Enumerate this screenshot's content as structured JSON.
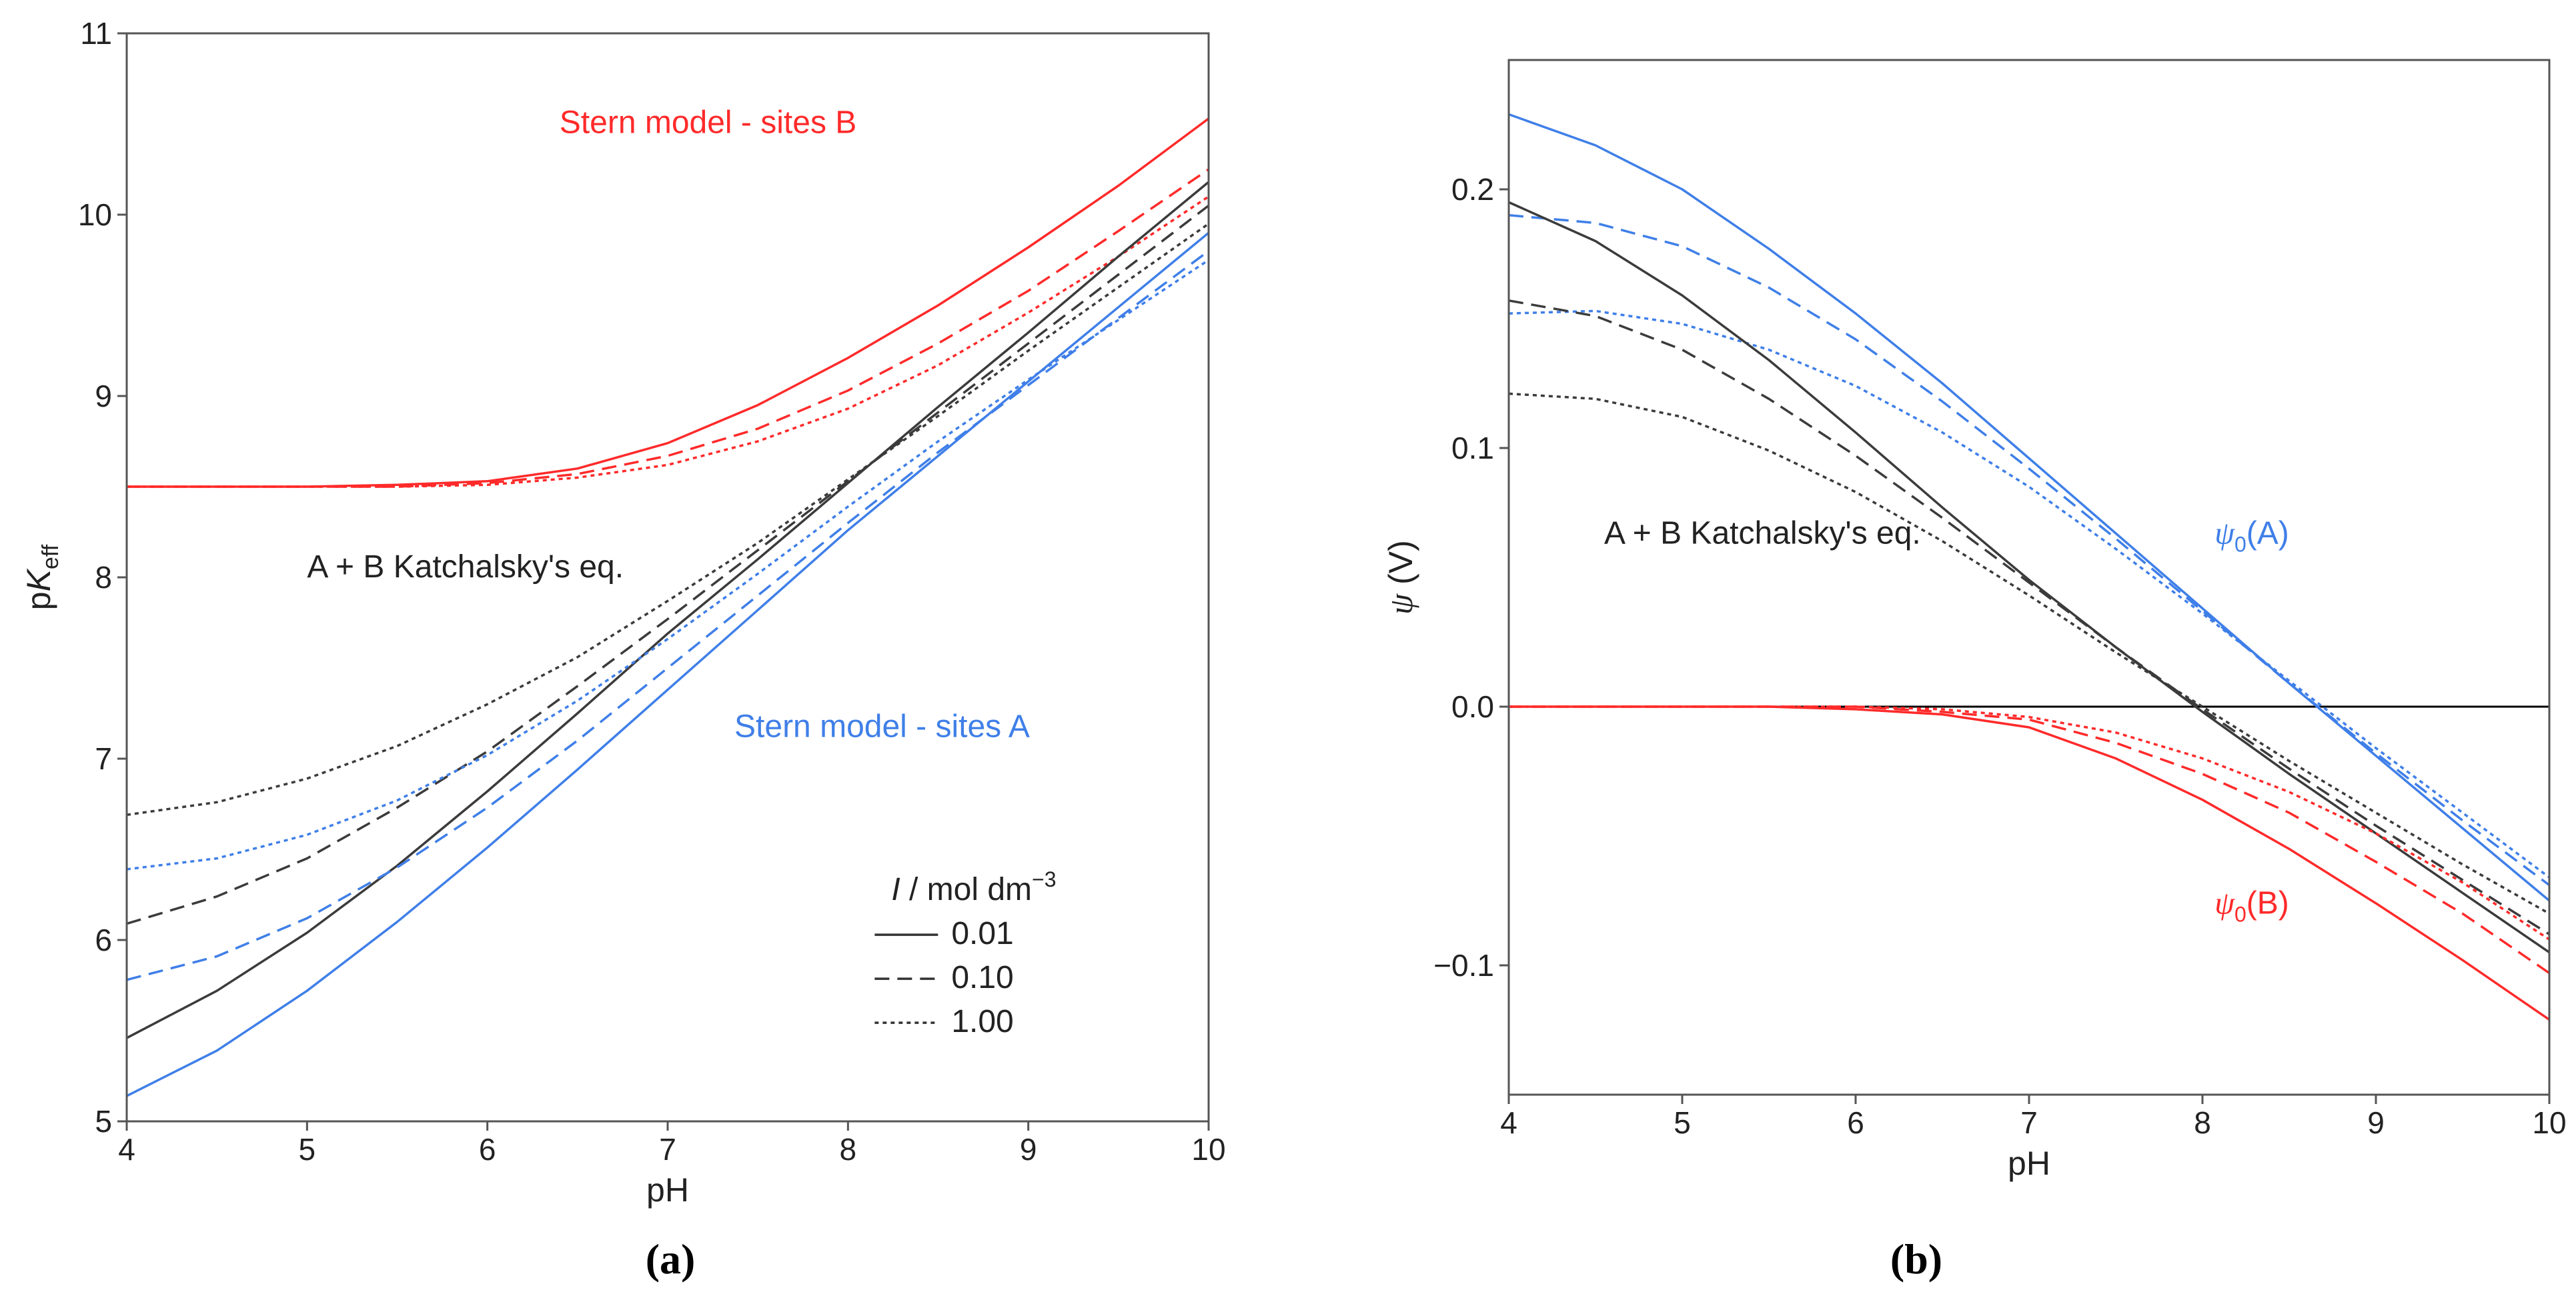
{
  "chart_data": [
    {
      "panel": "a",
      "type": "line",
      "caption": "(a)",
      "xlabel": "pH",
      "ylabel": "pK_eff",
      "ylabel_parts": {
        "prefix": "p",
        "italic": "K",
        "sub": "eff"
      },
      "xlim": [
        4,
        10
      ],
      "ylim": [
        5,
        11
      ],
      "xticks": [
        "4",
        "5",
        "6",
        "7",
        "8",
        "9",
        "10"
      ],
      "yticks": [
        "5",
        "6",
        "7",
        "8",
        "9",
        "10",
        "11"
      ],
      "x": [
        4,
        4.5,
        5,
        5.5,
        6,
        6.5,
        7,
        7.5,
        8,
        8.5,
        9,
        9.5,
        10
      ],
      "series": [
        {
          "name": "Stern model - sites B, I = 0.01",
          "group": "B",
          "ionic_strength": "0.01",
          "color": "#ff2a2a",
          "style": "solid",
          "values": [
            8.5,
            8.5,
            8.5,
            8.51,
            8.53,
            8.6,
            8.74,
            8.95,
            9.21,
            9.5,
            9.82,
            10.16,
            10.53
          ]
        },
        {
          "name": "Stern model - sites B, I = 0.10",
          "group": "B",
          "ionic_strength": "0.10",
          "color": "#ff2a2a",
          "style": "dashed",
          "values": [
            8.5,
            8.5,
            8.5,
            8.5,
            8.52,
            8.57,
            8.67,
            8.82,
            9.03,
            9.29,
            9.58,
            9.91,
            10.25
          ]
        },
        {
          "name": "Stern model - sites B, I = 1.00",
          "group": "B",
          "ionic_strength": "1.00",
          "color": "#ff2a2a",
          "style": "dotted",
          "values": [
            8.5,
            8.5,
            8.5,
            8.5,
            8.51,
            8.55,
            8.62,
            8.75,
            8.93,
            9.17,
            9.46,
            9.77,
            10.1
          ]
        },
        {
          "name": "A + B Katchalsky's eq., I = 0.01",
          "group": "AB",
          "ionic_strength": "0.01",
          "color": "#3b3b3b",
          "style": "solid",
          "values": [
            5.46,
            5.72,
            6.04,
            6.41,
            6.82,
            7.25,
            7.69,
            8.1,
            8.52,
            8.94,
            9.35,
            9.77,
            10.18
          ]
        },
        {
          "name": "A + B Katchalsky's eq., I = 0.10",
          "group": "AB",
          "ionic_strength": "0.10",
          "color": "#3b3b3b",
          "style": "dashed",
          "values": [
            6.09,
            6.24,
            6.45,
            6.73,
            7.04,
            7.4,
            7.77,
            8.15,
            8.53,
            8.91,
            9.29,
            9.67,
            10.05
          ]
        },
        {
          "name": "A + B Katchalsky's eq., I = 1.00",
          "group": "AB",
          "ionic_strength": "1.00",
          "color": "#3b3b3b",
          "style": "dotted",
          "values": [
            6.69,
            6.76,
            6.89,
            7.07,
            7.3,
            7.56,
            7.87,
            8.19,
            8.54,
            8.89,
            9.25,
            9.6,
            9.95
          ]
        },
        {
          "name": "Stern model - sites A, I = 0.01",
          "group": "A",
          "ionic_strength": "0.01",
          "color": "#3f7fe8",
          "style": "solid",
          "values": [
            5.14,
            5.39,
            5.72,
            6.1,
            6.51,
            6.94,
            7.38,
            7.82,
            8.26,
            8.67,
            9.08,
            9.49,
            9.9
          ]
        },
        {
          "name": "Stern model - sites A, I = 0.10",
          "group": "A",
          "ionic_strength": "0.10",
          "color": "#3f7fe8",
          "style": "dashed",
          "values": [
            5.78,
            5.91,
            6.12,
            6.4,
            6.73,
            7.1,
            7.5,
            7.9,
            8.3,
            8.69,
            9.06,
            9.43,
            9.8
          ]
        },
        {
          "name": "Stern model - sites A, I = 1.00",
          "group": "A",
          "ionic_strength": "1.00",
          "color": "#3f7fe8",
          "style": "dotted",
          "values": [
            6.39,
            6.45,
            6.58,
            6.77,
            7.02,
            7.32,
            7.66,
            8.02,
            8.39,
            8.75,
            9.09,
            9.42,
            9.75
          ]
        }
      ],
      "annotations": [
        {
          "text": "Stern model - sites B",
          "x": 6.4,
          "y": 10.45,
          "color": "#ff2a2a",
          "anchor": "start"
        },
        {
          "text": "A + B Katchalsky's eq.",
          "x": 5.0,
          "y": 8.0,
          "color": "#222222",
          "anchor": "start"
        },
        {
          "text": "Stern model - sites A",
          "x": 7.37,
          "y": 7.12,
          "color": "#3f7fe8",
          "anchor": "start"
        }
      ],
      "legend": {
        "title": "I / mol dm",
        "title_italic": "I",
        "title_rest": " / mol dm",
        "title_sup": "−3",
        "placement": "lower-right",
        "entries": [
          {
            "label": "0.01",
            "style": "solid"
          },
          {
            "label": "0.10",
            "style": "dashed"
          },
          {
            "label": "1.00",
            "style": "dotted"
          }
        ]
      }
    },
    {
      "panel": "b",
      "type": "line",
      "caption": "(b)",
      "xlabel": "pH",
      "ylabel": "ψ (V)",
      "ylabel_parts": {
        "italic": "ψ",
        "rest": " (V)"
      },
      "xlim": [
        4,
        10
      ],
      "ylim": [
        -0.15,
        0.25
      ],
      "xticks": [
        "4",
        "5",
        "6",
        "7",
        "8",
        "9",
        "10"
      ],
      "ytick_values": [
        -0.1,
        0.0,
        0.1,
        0.2
      ],
      "yticks": [
        "−0.1",
        "0.0",
        "0.1",
        "0.2"
      ],
      "zero_line": true,
      "x": [
        4,
        4.5,
        5,
        5.5,
        6,
        6.5,
        7,
        7.5,
        8,
        8.5,
        9,
        9.5,
        10
      ],
      "series": [
        {
          "name": "ψ0(A), I = 0.01",
          "group": "A",
          "ionic_strength": "0.01",
          "color": "#3f7fe8",
          "style": "solid",
          "values": [
            0.229,
            0.217,
            0.2,
            0.177,
            0.152,
            0.125,
            0.096,
            0.067,
            0.038,
            0.009,
            -0.019,
            -0.047,
            -0.075
          ]
        },
        {
          "name": "ψ0(A), I = 0.10",
          "group": "A",
          "ionic_strength": "0.10",
          "color": "#3f7fe8",
          "style": "dashed",
          "values": [
            0.19,
            0.187,
            0.178,
            0.162,
            0.142,
            0.118,
            0.092,
            0.065,
            0.037,
            0.009,
            -0.018,
            -0.044,
            -0.069
          ]
        },
        {
          "name": "ψ0(A), I = 1.00",
          "group": "A",
          "ionic_strength": "1.00",
          "color": "#3f7fe8",
          "style": "dotted",
          "values": [
            0.152,
            0.153,
            0.148,
            0.138,
            0.124,
            0.106,
            0.085,
            0.061,
            0.036,
            0.01,
            -0.016,
            -0.041,
            -0.066
          ]
        },
        {
          "name": "A + B Katchalsky's eq., I = 0.01",
          "group": "AB",
          "ionic_strength": "0.01",
          "color": "#3b3b3b",
          "style": "solid",
          "values": [
            0.195,
            0.18,
            0.159,
            0.134,
            0.106,
            0.077,
            0.049,
            0.023,
            -0.002,
            -0.026,
            -0.049,
            -0.072,
            -0.095
          ]
        },
        {
          "name": "A + B Katchalsky's eq., I = 0.10",
          "group": "AB",
          "ionic_strength": "0.10",
          "color": "#3b3b3b",
          "style": "dashed",
          "values": [
            0.157,
            0.151,
            0.138,
            0.119,
            0.097,
            0.073,
            0.048,
            0.023,
            -0.001,
            -0.024,
            -0.046,
            -0.067,
            -0.088
          ]
        },
        {
          "name": "A + B Katchalsky's eq., I = 1.00",
          "group": "AB",
          "ionic_strength": "1.00",
          "color": "#3b3b3b",
          "style": "dotted",
          "values": [
            0.121,
            0.119,
            0.112,
            0.099,
            0.083,
            0.064,
            0.043,
            0.021,
            0.0,
            -0.021,
            -0.041,
            -0.061,
            -0.08
          ]
        },
        {
          "name": "ψ0(B), I = 0.01",
          "group": "B",
          "ionic_strength": "0.01",
          "color": "#ff2a2a",
          "style": "solid",
          "values": [
            0.0,
            0.0,
            0.0,
            0.0,
            -0.001,
            -0.003,
            -0.008,
            -0.02,
            -0.036,
            -0.055,
            -0.076,
            -0.098,
            -0.121
          ]
        },
        {
          "name": "ψ0(B), I = 0.10",
          "group": "B",
          "ionic_strength": "0.10",
          "color": "#ff2a2a",
          "style": "dashed",
          "values": [
            0.0,
            0.0,
            0.0,
            0.0,
            0.0,
            -0.002,
            -0.005,
            -0.014,
            -0.026,
            -0.041,
            -0.06,
            -0.08,
            -0.103
          ]
        },
        {
          "name": "ψ0(B), I = 1.00",
          "group": "B",
          "ionic_strength": "1.00",
          "color": "#ff2a2a",
          "style": "dotted",
          "values": [
            0.0,
            0.0,
            0.0,
            0.0,
            0.0,
            -0.001,
            -0.004,
            -0.01,
            -0.02,
            -0.033,
            -0.049,
            -0.068,
            -0.09
          ]
        }
      ],
      "annotations": [
        {
          "text": "A + B Katchalsky's eq.",
          "x": 4.55,
          "y": 0.063,
          "color": "#222222",
          "anchor": "start"
        }
      ],
      "series_labels": [
        {
          "symbol": "ψ",
          "sub": "0",
          "rest": "(A)",
          "x": 8.07,
          "y": 0.063,
          "color": "#3f7fe8"
        },
        {
          "symbol": "ψ",
          "sub": "0",
          "rest": "(B)",
          "x": 8.07,
          "y": -0.08,
          "color": "#ff2a2a"
        }
      ]
    }
  ]
}
